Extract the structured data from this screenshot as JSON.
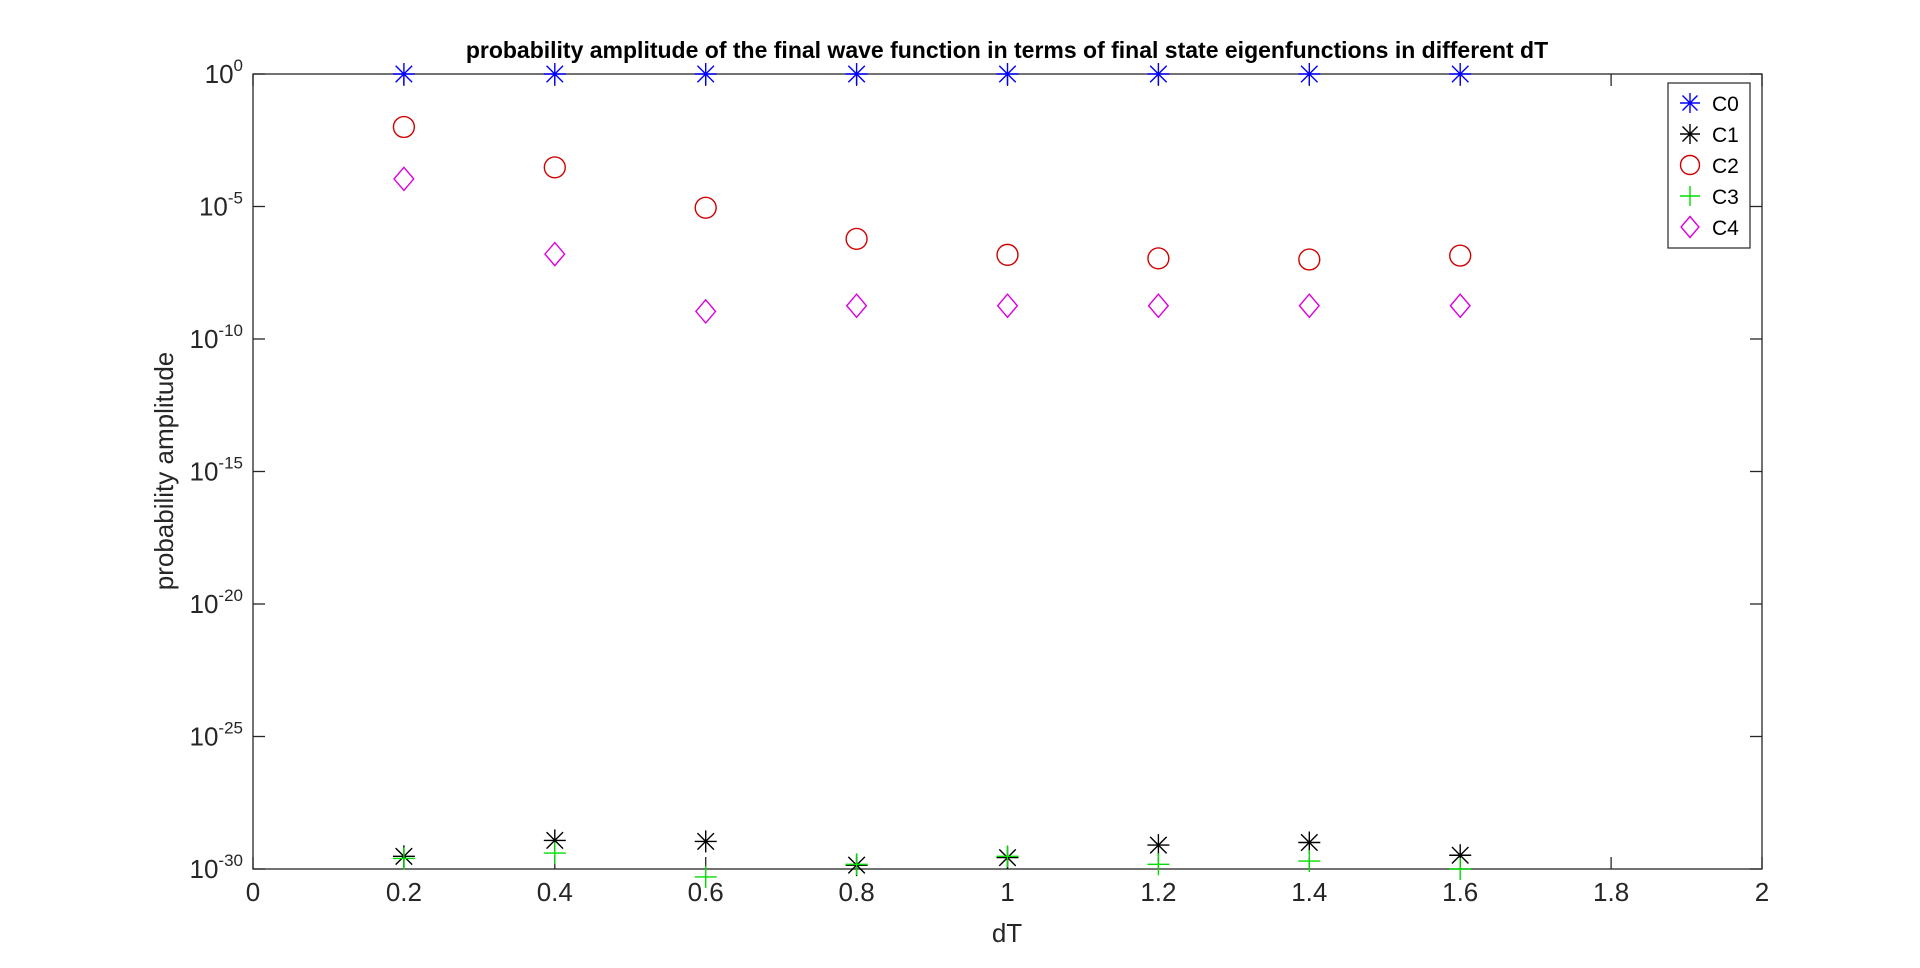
{
  "chart_data": {
    "type": "scatter",
    "title": "probability amplitude of the final wave function in terms of final state eigenfunctions in different dT",
    "xlabel": "dT",
    "ylabel": "probability amplitude",
    "xlim": [
      0,
      2
    ],
    "ylim": [
      1e-30,
      1
    ],
    "yscale": "log",
    "grid": false,
    "legend_position": "top-right",
    "x_ticks": [
      "0",
      "0.2",
      "0.4",
      "0.6",
      "0.8",
      "1",
      "1.2",
      "1.4",
      "1.6",
      "1.8",
      "2"
    ],
    "y_ticks": [
      {
        "base": "10",
        "exp": "0"
      },
      {
        "base": "10",
        "exp": "-5"
      },
      {
        "base": "10",
        "exp": "-10"
      },
      {
        "base": "10",
        "exp": "-15"
      },
      {
        "base": "10",
        "exp": "-20"
      },
      {
        "base": "10",
        "exp": "-25"
      },
      {
        "base": "10",
        "exp": "-30"
      }
    ],
    "x": [
      0.2,
      0.4,
      0.6,
      0.8,
      1.0,
      1.2,
      1.4,
      1.6
    ],
    "series": [
      {
        "name": "C0",
        "marker": "asterisk",
        "color": "#0000ff",
        "values": [
          1,
          1,
          1,
          1,
          1,
          1,
          1,
          1
        ]
      },
      {
        "name": "C1",
        "marker": "asterisk",
        "color": "#000000",
        "values": [
          3e-30,
          1.2e-29,
          1.1e-29,
          1.4e-30,
          2.7e-30,
          8e-30,
          1e-29,
          3.3e-30
        ]
      },
      {
        "name": "C2",
        "marker": "circle",
        "color": "#d00000",
        "values": [
          0.01,
          0.0003,
          9e-06,
          6e-07,
          1.5e-07,
          1.1e-07,
          1e-07,
          1.4e-07
        ]
      },
      {
        "name": "C3",
        "marker": "plus",
        "color": "#00dd00",
        "values": [
          2.5e-30,
          4e-30,
          5e-31,
          1.5e-30,
          3e-30,
          1.5e-30,
          2e-30,
          1e-30
        ]
      },
      {
        "name": "C4",
        "marker": "diamond",
        "color": "#dd00dd",
        "values": [
          0.00011,
          1.6e-07,
          1.1e-09,
          1.8e-09,
          1.8e-09,
          1.8e-09,
          1.8e-09,
          1.8e-09
        ]
      }
    ]
  }
}
